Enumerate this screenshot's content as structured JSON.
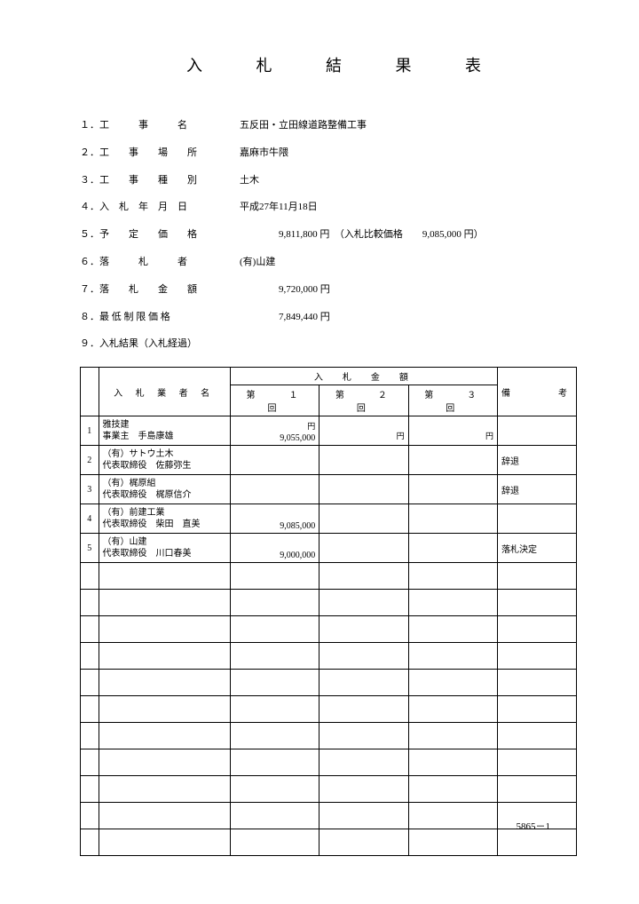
{
  "title": "入 札 結 果 表",
  "info": [
    {
      "label": "１．工　　　事　　　名",
      "value": "五反田・立田線道路整備工事"
    },
    {
      "label": "２．工　　事　　場　　所",
      "value": "嘉麻市牛隈"
    },
    {
      "label": "３．工　　事　　種　　別",
      "value": "土木"
    },
    {
      "label": "４．入　札　年　月　日",
      "value": "平成27年11月18日"
    },
    {
      "label": "５．予　　定　　価　　格",
      "value": "　　　　9,811,800 円　（入札比較価格　　9,085,000 円）"
    },
    {
      "label": "６．落　　　札　　　者",
      "value": "(有)山建"
    },
    {
      "label": "７．落　　札　　金　　額",
      "value": "　　　　9,720,000 円"
    },
    {
      "label": "８．最 低 制 限 価 格",
      "value": "　　　　7,849,440 円"
    },
    {
      "label": "９．入札結果（入札経過）",
      "value": ""
    }
  ],
  "table": {
    "header": {
      "bidder": "入 札 業 者 名",
      "amount": "入　札　金　額",
      "round1": "第　　１　　回",
      "round2": "第　　２　　回",
      "round3": "第　　３　　回",
      "remarks": "備　　　考",
      "yen": "円"
    },
    "rows": [
      {
        "num": "1",
        "name1": "雅技建",
        "name2": "事業主　手島康雄",
        "r1": "9,055,000",
        "r2": "",
        "r3": "",
        "remarks": ""
      },
      {
        "num": "2",
        "name1": "（有）サトウ土木",
        "name2": "代表取締役　佐藤弥生",
        "r1": "",
        "r2": "",
        "r3": "",
        "remarks": "辞退"
      },
      {
        "num": "3",
        "name1": "（有）梶原組",
        "name2": "代表取締役　梶原信介",
        "r1": "",
        "r2": "",
        "r3": "",
        "remarks": "辞退"
      },
      {
        "num": "4",
        "name1": "（有）前建工業",
        "name2": "代表取締役　柴田　直美",
        "r1": "9,085,000",
        "r2": "",
        "r3": "",
        "remarks": ""
      },
      {
        "num": "5",
        "name1": "（有）山建",
        "name2": "代表取締役　川口春美",
        "r1": "9,000,000",
        "r2": "",
        "r3": "",
        "remarks": "落札決定"
      }
    ],
    "emptyRowCount": 11
  },
  "footer": "5865－1"
}
